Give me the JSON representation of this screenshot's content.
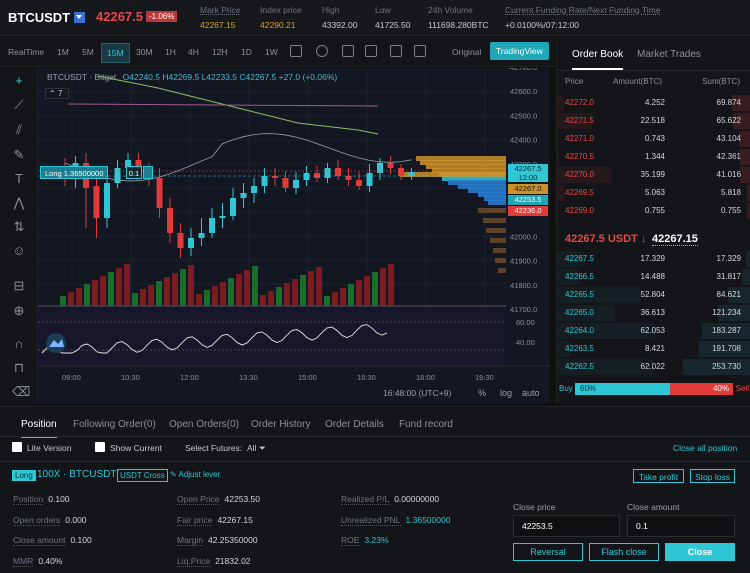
{
  "header": {
    "symbol": "BTCUSDT",
    "last_price": "42267.5",
    "change": "-1.06%",
    "stats": [
      {
        "label": "Mark Price",
        "value": "42267.15",
        "gold": true
      },
      {
        "label": "Index price",
        "value": "42290.21",
        "gold": true
      },
      {
        "label": "High",
        "value": "43392.00"
      },
      {
        "label": "Low",
        "value": "41725.50"
      },
      {
        "label": "24h Volume",
        "value": "111698.280BTC"
      },
      {
        "label": "Current Funding Rate/Next Funding Time",
        "value": "+0.0100%/07:12:00"
      }
    ]
  },
  "toolbar": {
    "timeframes": [
      "RealTime",
      "1M",
      "5M",
      "15M",
      "30M",
      "1H",
      "4H",
      "12H",
      "1D",
      "1W"
    ],
    "active": "15M",
    "original": "Original",
    "tradingview": "TradingView"
  },
  "chart": {
    "legend": "BTCUSDT · Bitget",
    "ohlc": "O42240.5 H42269.5 L42233.5 C42267.5 +27.0 (+0.06%)",
    "count": "7",
    "price_ticks": [
      "42700.0",
      "42600.0",
      "42500.0",
      "42400.0",
      "42300.0",
      "42200.0",
      "42100.0",
      "42000.0",
      "41900.0",
      "41800.0",
      "41700.0"
    ],
    "osc_ticks": [
      "60.00",
      "40.00"
    ],
    "time_ticks": [
      "09:00",
      "10:30",
      "12:00",
      "13:30",
      "15:00",
      "16:30",
      "18:00",
      "19:30"
    ],
    "position_label": "Long 1.36500000",
    "position_qty": "0.1",
    "price_tags": {
      "t1": "42267.5",
      "t1b": "12:00",
      "t2": "42267.0",
      "t3": "42253.5",
      "t4": "42236.0"
    },
    "clock": "16:48:00 (UTC+9)",
    "pct": "%",
    "log": "log",
    "auto": "auto"
  },
  "orderbook": {
    "tabs": [
      "Order Book",
      "Market Trades"
    ],
    "headers": {
      "price": "Price",
      "amount": "Amount(BTC)",
      "sum": "Sum(BTC)"
    },
    "asks": [
      {
        "p": "42272.0",
        "a": "4.252",
        "s": "69.874"
      },
      {
        "p": "42271.5",
        "a": "22.518",
        "s": "65.622"
      },
      {
        "p": "42271.0",
        "a": "0.743",
        "s": "43.104"
      },
      {
        "p": "42270.5",
        "a": "1.344",
        "s": "42.361"
      },
      {
        "p": "42270.0",
        "a": "35.199",
        "s": "41.016"
      },
      {
        "p": "42269.5",
        "a": "5.063",
        "s": "5.818"
      },
      {
        "p": "42269.0",
        "a": "0.755",
        "s": "0.755"
      }
    ],
    "mid": "42267.5 USDT ↓",
    "index": "42267.15",
    "bids": [
      {
        "p": "42267.5",
        "a": "17.329",
        "s": "17.329"
      },
      {
        "p": "42266.5",
        "a": "14.488",
        "s": "31.817"
      },
      {
        "p": "42265.5",
        "a": "52.804",
        "s": "84.621"
      },
      {
        "p": "42265.0",
        "a": "36.613",
        "s": "121.234"
      },
      {
        "p": "42264.0",
        "a": "62.053",
        "s": "183.287"
      },
      {
        "p": "42263.5",
        "a": "8.421",
        "s": "191.708"
      },
      {
        "p": "42262.5",
        "a": "62.022",
        "s": "253.730"
      }
    ],
    "buy_label": "Buy",
    "buy_pct": "60%",
    "sell_pct": "40%",
    "sell_label": "Sell",
    "buy_fraction": 0.6
  },
  "panel": {
    "tabs": [
      "Position",
      "Following Order(0)",
      "Open Orders(0)",
      "Order History",
      "Order Details",
      "Fund record"
    ],
    "lite": "Lite Version",
    "show_current": "Show Current",
    "select_futures": "Select Futures:",
    "futures_value": "All",
    "close_all": "Close all position",
    "badge": "Long",
    "title": "100X · BTCUSDT",
    "cross": "USDT Cross",
    "adjust": "Adjust lever",
    "take_profit": "Take profit",
    "stop_loss": "Stop loss",
    "fields": {
      "position": "0.100",
      "open_orders": "0.000",
      "close_amount": "0.100",
      "mmr": "0.40%",
      "open_price": "42253.50",
      "fair_price": "42267.15",
      "margin": "42.25350000",
      "liq_price": "21832.02",
      "realized": "0.00000000",
      "unrealized": "1.36500000",
      "roe": "3.23%"
    },
    "labels": {
      "position": "Position",
      "open_orders": "Open orders",
      "close_amount": "Close amount",
      "mmr": "MMR",
      "open_price": "Open Price",
      "fair_price": "Fair price",
      "margin": "Margin",
      "liq_price": "Liq.Price",
      "realized": "Realized P/L",
      "unrealized": "Unrealized PNL",
      "roe": "ROE"
    },
    "close_price_label": "Close price",
    "close_price": "42253.5",
    "close_amount_label": "Close amount",
    "close_amount_value": "0.1",
    "reversal": "Reversal",
    "flash_close": "Flash close",
    "close": "Close"
  }
}
